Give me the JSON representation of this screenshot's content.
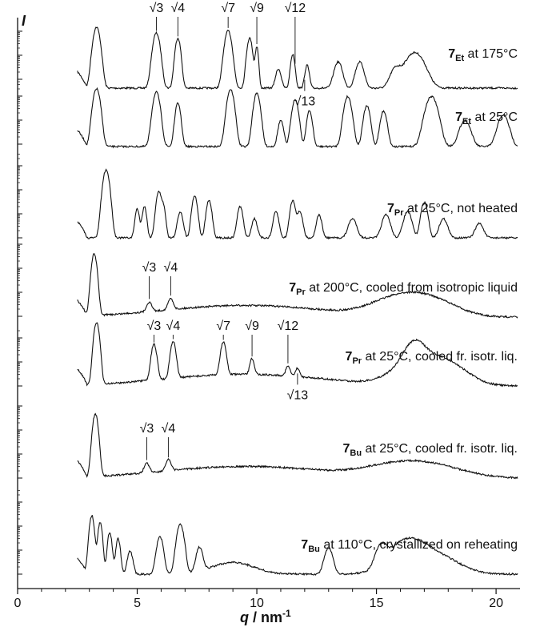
{
  "chart_data": {
    "type": "line",
    "title": "",
    "xlabel": "q / nm",
    "xlabel_sup": "-1",
    "ylabel": "I",
    "xlim": [
      0,
      21
    ],
    "x_ticks": [
      0,
      5,
      10,
      15,
      20
    ],
    "y_scale": "log",
    "grid": false,
    "series": [
      {
        "formula": "7",
        "sub": "Et",
        "rest": " at 175°C",
        "baseline": 4,
        "x_start": 2.5,
        "x_end": 20.9,
        "peaks": [
          [
            3.3,
            70,
            0.13
          ],
          [
            5.8,
            52,
            0.13
          ],
          [
            6.7,
            40,
            0.1
          ],
          [
            8.8,
            58,
            0.13
          ],
          [
            9.7,
            40,
            0.1
          ],
          [
            10.0,
            25,
            0.06
          ],
          [
            10.9,
            6,
            0.1
          ],
          [
            11.5,
            16,
            0.08
          ],
          [
            12.1,
            8,
            0.08
          ],
          [
            13.4,
            10,
            0.15
          ],
          [
            14.3,
            10,
            0.15
          ],
          [
            15.8,
            6,
            0.2
          ],
          [
            16.6,
            18,
            0.35
          ]
        ],
        "labels": [
          {
            "text": "√3",
            "q": 5.8
          },
          {
            "text": "√4",
            "q": 6.7
          },
          {
            "text": "√7",
            "q": 8.8
          },
          {
            "text": "√9",
            "q": 10.0
          },
          {
            "text": "√12",
            "q": 11.6
          }
        ],
        "below_labels": [
          {
            "text": "√13",
            "q": 12.0
          }
        ]
      },
      {
        "formula": "7",
        "sub": "Et",
        "rest": " at 25°C",
        "baseline": 4,
        "x_start": 2.5,
        "x_end": 20.9,
        "peaks": [
          [
            3.3,
            60,
            0.13
          ],
          [
            5.8,
            50,
            0.13
          ],
          [
            6.7,
            28,
            0.1
          ],
          [
            8.9,
            58,
            0.13
          ],
          [
            10.0,
            48,
            0.12
          ],
          [
            11.0,
            10,
            0.1
          ],
          [
            11.6,
            34,
            0.12
          ],
          [
            12.2,
            18,
            0.1
          ],
          [
            13.8,
            40,
            0.14
          ],
          [
            14.6,
            24,
            0.12
          ],
          [
            15.3,
            18,
            0.12
          ],
          [
            17.3,
            40,
            0.22
          ],
          [
            18.7,
            10,
            0.2
          ],
          [
            20.3,
            14,
            0.2
          ]
        ],
        "labels": [],
        "below_labels": []
      },
      {
        "formula": "7",
        "sub": "Pr",
        "rest": " at 25°C, not heated",
        "baseline": 4,
        "x_start": 2.5,
        "x_end": 20.9,
        "peaks": [
          [
            3.7,
            100,
            0.12
          ],
          [
            5.0,
            12,
            0.08
          ],
          [
            5.3,
            14,
            0.08
          ],
          [
            5.9,
            32,
            0.1
          ],
          [
            6.1,
            12,
            0.08
          ],
          [
            6.8,
            10,
            0.1
          ],
          [
            7.4,
            26,
            0.1
          ],
          [
            8.0,
            20,
            0.1
          ],
          [
            9.3,
            14,
            0.1
          ],
          [
            9.9,
            6,
            0.1
          ],
          [
            10.8,
            10,
            0.1
          ],
          [
            11.5,
            20,
            0.1
          ],
          [
            11.8,
            10,
            0.1
          ],
          [
            12.6,
            8,
            0.1
          ],
          [
            14.0,
            6,
            0.15
          ],
          [
            15.4,
            8,
            0.15
          ],
          [
            16.3,
            10,
            0.15
          ],
          [
            17.0,
            18,
            0.12
          ],
          [
            17.8,
            6,
            0.15
          ],
          [
            19.3,
            4,
            0.15
          ]
        ],
        "labels": [],
        "below_labels": []
      },
      {
        "formula": "7",
        "sub": "Pr",
        "rest": " at 200°C, cooled from isotropic liquid",
        "baseline": 4,
        "x_start": 2.5,
        "x_end": 20.9,
        "peaks": [
          [
            3.2,
            78,
            0.1
          ],
          [
            5.5,
            3,
            0.1
          ],
          [
            6.4,
            4,
            0.1
          ],
          [
            9.5,
            3,
            3.0
          ],
          [
            16.5,
            9,
            1.2
          ]
        ],
        "labels": [
          {
            "text": "√3",
            "q": 5.5
          },
          {
            "text": "√4",
            "q": 6.4
          }
        ],
        "below_labels": []
      },
      {
        "formula": "7",
        "sub": "Pr",
        "rest": " at 25°C, cooled fr. isotr. liq.",
        "baseline": 4,
        "x_start": 2.5,
        "x_end": 20.9,
        "peaks": [
          [
            3.3,
            80,
            0.1
          ],
          [
            5.7,
            24,
            0.1
          ],
          [
            6.5,
            28,
            0.1
          ],
          [
            8.6,
            26,
            0.1
          ],
          [
            9.8,
            8,
            0.08
          ],
          [
            11.3,
            4,
            0.08
          ],
          [
            11.7,
            3,
            0.08
          ],
          [
            9.5,
            3,
            3.0
          ],
          [
            16.6,
            20,
            0.35
          ],
          [
            17.2,
            14,
            1.0
          ]
        ],
        "labels": [
          {
            "text": "√3",
            "q": 5.7
          },
          {
            "text": "√4",
            "q": 6.5
          },
          {
            "text": "√7",
            "q": 8.6
          },
          {
            "text": "√9",
            "q": 9.8
          },
          {
            "text": "√12",
            "q": 11.3
          }
        ],
        "below_labels": [
          {
            "text": "√13",
            "q": 11.7
          }
        ]
      },
      {
        "formula": "7",
        "sub": "Bu",
        "rest": " at 25°C, cooled fr. isotr. liq.",
        "baseline": 4,
        "x_start": 2.5,
        "x_end": 20.9,
        "peaks": [
          [
            3.25,
            82,
            0.1
          ],
          [
            5.4,
            3,
            0.1
          ],
          [
            6.3,
            4,
            0.1
          ],
          [
            9.5,
            3,
            3.0
          ],
          [
            16.5,
            5,
            1.5
          ]
        ],
        "labels": [
          {
            "text": "√3",
            "q": 5.4
          },
          {
            "text": "√4",
            "q": 6.3
          }
        ],
        "below_labels": []
      },
      {
        "formula": "7",
        "sub": "Bu",
        "rest": " at 110°C, crystallized on reheating",
        "baseline": 4,
        "x_start": 2.5,
        "x_end": 20.9,
        "peaks": [
          [
            3.1,
            62,
            0.09
          ],
          [
            3.45,
            44,
            0.08
          ],
          [
            3.85,
            26,
            0.08
          ],
          [
            4.2,
            18,
            0.08
          ],
          [
            4.7,
            8,
            0.1
          ],
          [
            5.95,
            20,
            0.12
          ],
          [
            6.8,
            40,
            0.13
          ],
          [
            7.6,
            10,
            0.12
          ],
          [
            9.0,
            3,
            0.8
          ],
          [
            13.0,
            10,
            0.15
          ],
          [
            15.2,
            10,
            0.2
          ],
          [
            16.3,
            12,
            0.6
          ],
          [
            17.0,
            8,
            1.0
          ]
        ],
        "labels": [],
        "below_labels": []
      }
    ]
  }
}
